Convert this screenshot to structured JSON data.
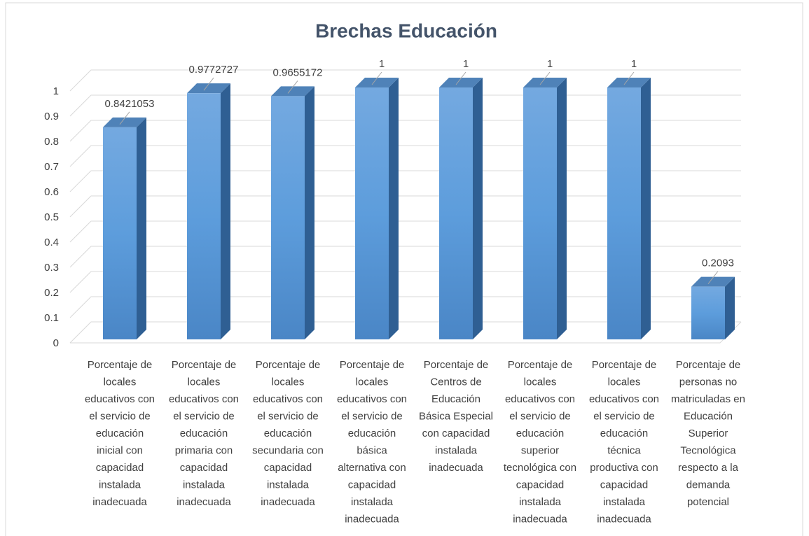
{
  "chart_data": {
    "type": "bar3d",
    "title": "Brechas Educación",
    "categories": [
      "Porcentaje de locales educativos con el servicio de educación inicial con capacidad instalada inadecuada",
      "Porcentaje de locales educativos con el servicio de educación primaria con capacidad instalada inadecuada",
      "Porcentaje de locales educativos con el servicio de educación secundaria con capacidad instalada inadecuada",
      "Porcentaje de locales educativos con el servicio de educación básica alternativa con capacidad instalada inadecuada",
      "Porcentaje de Centros de Educación Básica Especial con capacidad instalada inadecuada",
      "Porcentaje de locales educativos con el servicio de educación superior tecnológica con capacidad instalada inadecuada",
      "Porcentaje de locales educativos con el servicio de educación técnica productiva con capacidad instalada inadecuada",
      "Porcentaje de personas no matriculadas en Educación Superior Tecnológica respecto a la demanda potencial"
    ],
    "values": [
      0.8421053,
      0.9772727,
      0.9655172,
      1,
      1,
      1,
      1,
      0.2093
    ],
    "color": "#5b9bd5",
    "ylim": [
      0,
      1
    ],
    "yticks": [
      0,
      0.1,
      0.2,
      0.3,
      0.4,
      0.5,
      0.6,
      0.7,
      0.8,
      0.9,
      1
    ],
    "grid": true
  }
}
